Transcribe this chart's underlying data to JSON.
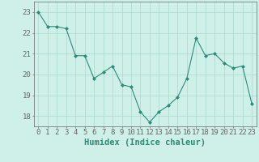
{
  "x": [
    0,
    1,
    2,
    3,
    4,
    5,
    6,
    7,
    8,
    9,
    10,
    11,
    12,
    13,
    14,
    15,
    16,
    17,
    18,
    19,
    20,
    21,
    22,
    23
  ],
  "y": [
    23.0,
    22.3,
    22.3,
    22.2,
    20.9,
    20.9,
    19.8,
    20.1,
    20.4,
    19.5,
    19.4,
    18.2,
    17.7,
    18.2,
    18.5,
    18.9,
    19.8,
    21.75,
    20.9,
    21.0,
    20.55,
    20.3,
    20.4,
    18.6
  ],
  "line_color": "#2d8b7a",
  "marker_color": "#2d8b7a",
  "bg_color": "#cef0e8",
  "grid_color": "#aad8cc",
  "axis_color": "#666666",
  "xlabel": "Humidex (Indice chaleur)",
  "ylim": [
    17.5,
    23.5
  ],
  "xlim": [
    -0.5,
    23.5
  ],
  "yticks": [
    18,
    19,
    20,
    21,
    22,
    23
  ],
  "xticks": [
    0,
    1,
    2,
    3,
    4,
    5,
    6,
    7,
    8,
    9,
    10,
    11,
    12,
    13,
    14,
    15,
    16,
    17,
    18,
    19,
    20,
    21,
    22,
    23
  ],
  "font_size": 6.5,
  "xlabel_font_size": 7.5,
  "xlabel_color": "#2d8b7a"
}
